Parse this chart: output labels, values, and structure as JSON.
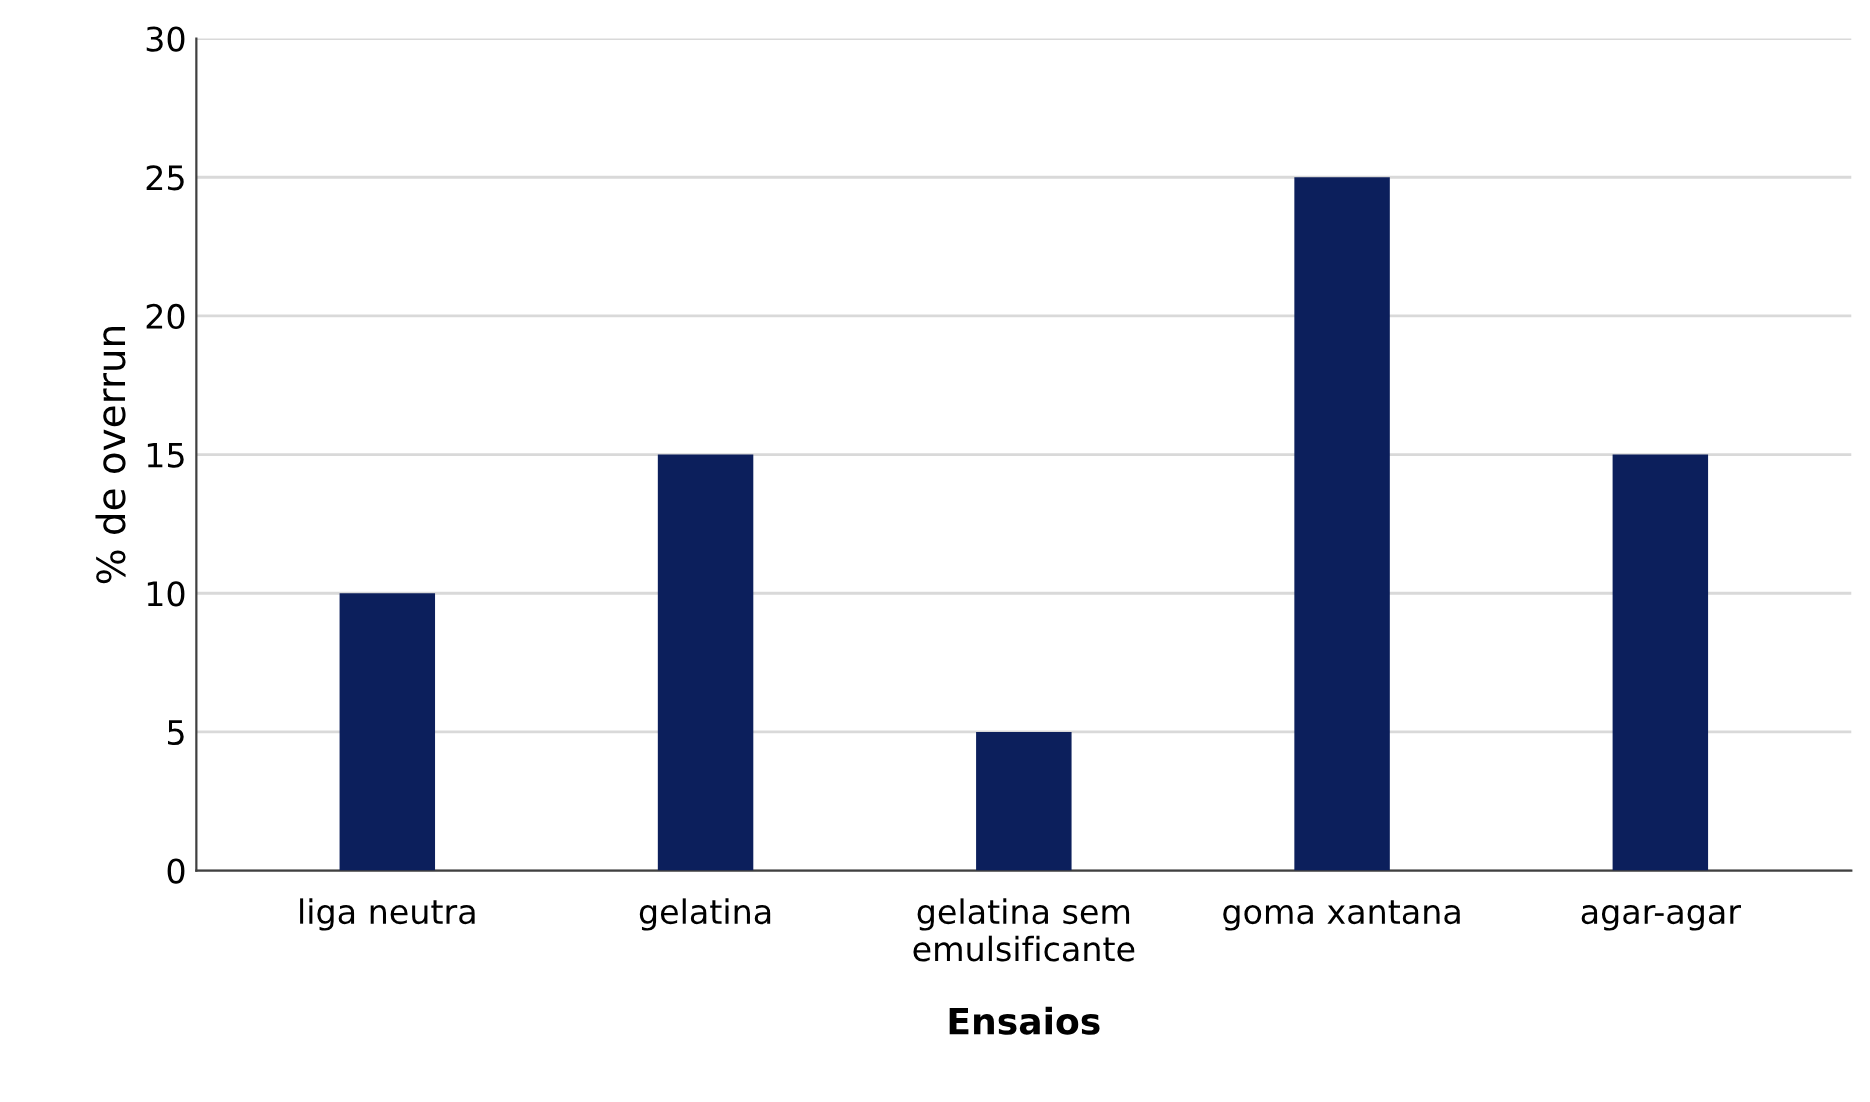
{
  "chart_data": {
    "type": "bar",
    "xlabel": "Ensaios",
    "ylabel": "% de overrun",
    "categories": [
      "liga neutra",
      "gelatina",
      "gelatina sem emulsificante",
      "goma xantana",
      "agar-agar"
    ],
    "values": [
      10,
      15,
      5,
      25,
      15
    ],
    "color": "#0c1f5c",
    "ylim": [
      0,
      30
    ],
    "yticks": [
      0,
      5,
      10,
      15,
      20,
      25,
      30
    ],
    "grid": "y"
  }
}
